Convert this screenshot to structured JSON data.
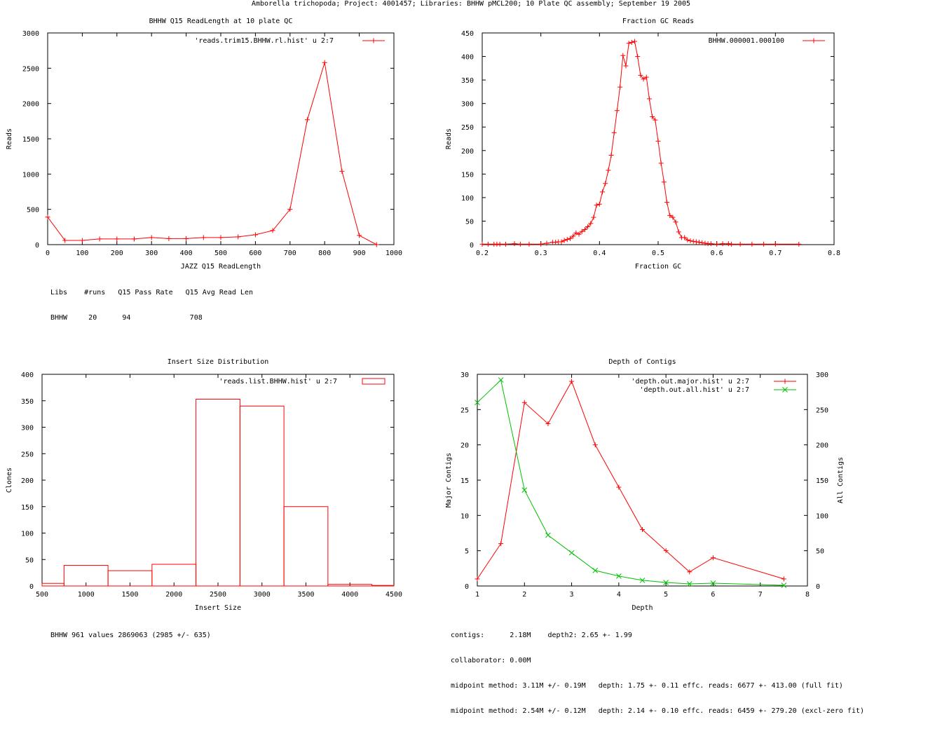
{
  "header": "Amborella trichopoda; Project: 4001457; Libraries: BHHW pMCL200; 10 Plate QC assembly; September 19 2005",
  "colors": {
    "red": "#ff0000",
    "green": "#00c000",
    "axis": "#000000"
  },
  "chart_data": [
    {
      "id": "readlength",
      "type": "line",
      "title": "BHHW Q15 ReadLength at 10 plate QC",
      "xlabel": "JAZZ Q15 ReadLength",
      "ylabel": "Reads",
      "xlim": [
        0,
        1000
      ],
      "ylim": [
        0,
        3000
      ],
      "xticks": [
        0,
        100,
        200,
        300,
        400,
        500,
        600,
        700,
        800,
        900,
        1000
      ],
      "yticks": [
        0,
        500,
        1000,
        1500,
        2000,
        2500,
        3000
      ],
      "legend_position": "top-right",
      "series": [
        {
          "name": "'reads.trim15.BHHW.rl.hist' u 2:7",
          "color": "#ff0000",
          "marker": "plus",
          "x": [
            0,
            50,
            100,
            150,
            200,
            250,
            300,
            350,
            400,
            450,
            500,
            550,
            600,
            650,
            700,
            750,
            800,
            850,
            900,
            950
          ],
          "y": [
            390,
            60,
            60,
            80,
            80,
            80,
            100,
            85,
            85,
            100,
            100,
            110,
            140,
            200,
            500,
            1770,
            2580,
            1040,
            130,
            0
          ]
        }
      ]
    },
    {
      "id": "gc",
      "type": "line",
      "title": "Fraction GC Reads",
      "xlabel": "Fraction GC",
      "ylabel": "Reads",
      "xlim": [
        0.2,
        0.8
      ],
      "ylim": [
        0,
        450
      ],
      "xticks": [
        0.2,
        0.3,
        0.4,
        0.5,
        0.6,
        0.7,
        0.8
      ],
      "yticks": [
        0,
        50,
        100,
        150,
        200,
        250,
        300,
        350,
        400,
        450
      ],
      "legend_position": "top-right",
      "series": [
        {
          "name": "BHHW.000001.000100",
          "color": "#ff0000",
          "marker": "plus",
          "x": [
            0.2,
            0.21,
            0.22,
            0.225,
            0.23,
            0.24,
            0.255,
            0.265,
            0.28,
            0.3,
            0.31,
            0.32,
            0.325,
            0.33,
            0.335,
            0.34,
            0.345,
            0.35,
            0.355,
            0.36,
            0.365,
            0.37,
            0.375,
            0.38,
            0.385,
            0.39,
            0.395,
            0.4,
            0.405,
            0.41,
            0.415,
            0.42,
            0.425,
            0.43,
            0.435,
            0.44,
            0.445,
            0.45,
            0.455,
            0.46,
            0.465,
            0.47,
            0.475,
            0.48,
            0.485,
            0.49,
            0.495,
            0.5,
            0.505,
            0.51,
            0.515,
            0.52,
            0.525,
            0.53,
            0.535,
            0.54,
            0.545,
            0.55,
            0.555,
            0.56,
            0.565,
            0.57,
            0.575,
            0.58,
            0.585,
            0.59,
            0.6,
            0.61,
            0.62,
            0.625,
            0.64,
            0.66,
            0.68,
            0.7,
            0.74
          ],
          "y": [
            1,
            1,
            1,
            1,
            1,
            1,
            2,
            1,
            1,
            1,
            3,
            5,
            5,
            6,
            6,
            9,
            11,
            13,
            18,
            25,
            22,
            28,
            32,
            38,
            45,
            58,
            84,
            86,
            112,
            130,
            158,
            190,
            238,
            285,
            335,
            402,
            380,
            428,
            430,
            432,
            400,
            360,
            352,
            356,
            310,
            272,
            265,
            220,
            173,
            133,
            90,
            62,
            58,
            48,
            27,
            15,
            15,
            10,
            8,
            7,
            6,
            5,
            4,
            3,
            2,
            2,
            1,
            2,
            2,
            1,
            1,
            1,
            1,
            1,
            1
          ]
        }
      ]
    },
    {
      "id": "insert",
      "type": "bar",
      "title": "Insert Size Distribution",
      "xlabel": "Insert Size",
      "ylabel": "Clones",
      "xlim": [
        500,
        4500
      ],
      "ylim": [
        0,
        400
      ],
      "xticks": [
        500,
        1000,
        1500,
        2000,
        2500,
        3000,
        3500,
        4000,
        4500
      ],
      "yticks": [
        0,
        50,
        100,
        150,
        200,
        250,
        300,
        350,
        400
      ],
      "legend_position": "top-right",
      "series": [
        {
          "name": "'reads.list.BHHW.hist' u 2:7",
          "color": "#ff0000",
          "bins": [
            [
              500,
              750,
              5
            ],
            [
              750,
              1250,
              39
            ],
            [
              1250,
              1750,
              29
            ],
            [
              1750,
              2250,
              41
            ],
            [
              2250,
              2750,
              353
            ],
            [
              2750,
              3250,
              340
            ],
            [
              3250,
              3750,
              150
            ],
            [
              3750,
              4250,
              3
            ],
            [
              4250,
              4500,
              1
            ]
          ]
        }
      ]
    },
    {
      "id": "depth",
      "type": "line",
      "title": "Depth of Contigs",
      "xlabel": "Depth",
      "ylabel": "Major Contigs",
      "y2label": "All Contigs",
      "xlim": [
        1,
        8
      ],
      "ylim": [
        0,
        30
      ],
      "y2lim": [
        0,
        300
      ],
      "xticks": [
        1,
        2,
        3,
        4,
        5,
        6,
        7,
        8
      ],
      "yticks": [
        0,
        5,
        10,
        15,
        20,
        25,
        30
      ],
      "y2ticks": [
        0,
        50,
        100,
        150,
        200,
        250,
        300
      ],
      "legend_position": "top-right",
      "series": [
        {
          "name": "'depth.out.major.hist' u 2:7",
          "color": "#ff0000",
          "marker": "plus",
          "axis": "y1",
          "x": [
            1,
            1.5,
            2,
            2.5,
            3,
            3.5,
            4,
            4.5,
            5,
            5.5,
            6,
            7.5
          ],
          "y": [
            1,
            6,
            26,
            23,
            29,
            20,
            14,
            8,
            5,
            2,
            4,
            1
          ]
        },
        {
          "name": "'depth.out.all.hist' u 2:7",
          "color": "#00c000",
          "marker": "x",
          "axis": "y2",
          "x": [
            1,
            1.5,
            2,
            2.5,
            3,
            3.5,
            4,
            4.5,
            5,
            5.5,
            6,
            7.5
          ],
          "y": [
            260,
            292,
            136,
            72,
            47,
            22,
            14,
            8,
            5,
            3,
            4,
            1
          ]
        }
      ]
    }
  ],
  "stats": {
    "readlength": [
      "Libs    #runs   Q15 Pass Rate   Q15 Avg Read Len",
      "BHHW     20      94              708"
    ],
    "insert": [
      "BHHW 961 values 2869063 (2985 +/- 635)"
    ],
    "depth": [
      "contigs:      2.18M    depth2: 2.65 +- 1.99",
      "collaborator: 0.00M",
      "midpoint method: 3.11M +/- 0.19M   depth: 1.75 +- 0.11 effc. reads: 6677 +- 413.00 (full fit)",
      "midpoint method: 2.54M +/- 0.12M   depth: 2.14 +- 0.10 effc. reads: 6459 +- 279.20 (excl-zero fit)"
    ]
  }
}
